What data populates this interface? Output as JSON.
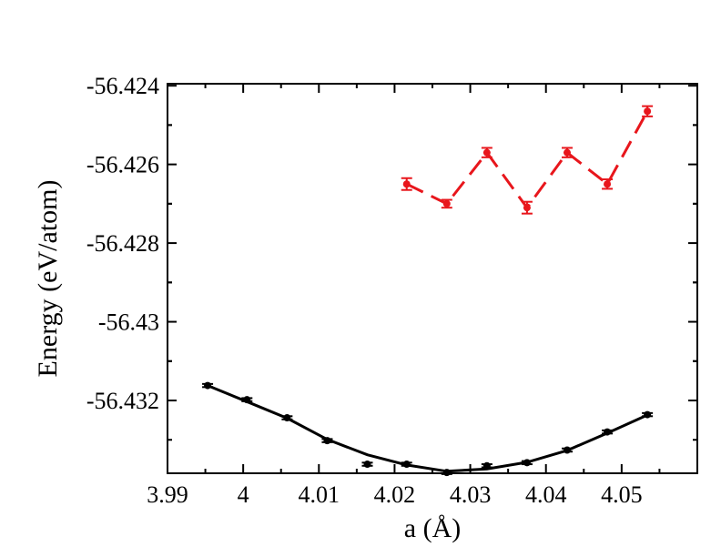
{
  "chart_data": {
    "type": "scatter",
    "xlabel": "a (Å)",
    "ylabel": "Energy (eV/atom)",
    "xlim": [
      3.99,
      4.06
    ],
    "ylim": [
      -56.43385,
      -56.42395
    ],
    "x_ticks": [
      3.99,
      4.0,
      4.01,
      4.02,
      4.03,
      4.04,
      4.05
    ],
    "x_tick_labels": [
      "3.99",
      "4",
      "4.01",
      "4.02",
      "4.03",
      "4.04",
      "4.05"
    ],
    "y_ticks": [
      -56.424,
      -56.426,
      -56.428,
      -56.43,
      -56.432
    ],
    "y_tick_labels": [
      "-56.424",
      "-56.426",
      "-56.428",
      "-56.43",
      "-56.432"
    ],
    "grid": false,
    "series": [
      {
        "color": "#000000",
        "line_style": "solid",
        "points": [
          {
            "x": 3.9953,
            "y": -56.43162,
            "err": 4e-05
          },
          {
            "x": 4.0005,
            "y": -56.43198,
            "err": 4e-05
          },
          {
            "x": 4.0058,
            "y": -56.43244,
            "err": 4e-05
          },
          {
            "x": 4.0111,
            "y": -56.43302,
            "err": 4e-05
          },
          {
            "x": 4.0164,
            "y": -56.43362,
            "err": 4e-05
          },
          {
            "x": 4.0216,
            "y": -56.43362,
            "err": 4e-05
          },
          {
            "x": 4.0269,
            "y": -56.43383,
            "err": 4e-05
          },
          {
            "x": 4.0322,
            "y": -56.43366,
            "err": 4e-05
          },
          {
            "x": 4.0375,
            "y": -56.43358,
            "err": 4e-05
          },
          {
            "x": 4.0428,
            "y": -56.43326,
            "err": 4e-05
          },
          {
            "x": 4.0481,
            "y": -56.4328,
            "err": 4e-05
          },
          {
            "x": 4.0534,
            "y": -56.43236,
            "err": 4e-05
          }
        ],
        "fit": [
          {
            "x": 3.9953,
            "y": -56.43162
          },
          {
            "x": 4.0005,
            "y": -56.43203
          },
          {
            "x": 4.0058,
            "y": -56.43245
          },
          {
            "x": 4.0111,
            "y": -56.43299
          },
          {
            "x": 4.0164,
            "y": -56.43338
          },
          {
            "x": 4.0216,
            "y": -56.43364
          },
          {
            "x": 4.0269,
            "y": -56.4338
          },
          {
            "x": 4.0322,
            "y": -56.43374
          },
          {
            "x": 4.0375,
            "y": -56.43357
          },
          {
            "x": 4.0428,
            "y": -56.43327
          },
          {
            "x": 4.0481,
            "y": -56.43283
          },
          {
            "x": 4.0534,
            "y": -56.43237
          }
        ]
      },
      {
        "color": "#e8161c",
        "line_style": "dashed",
        "points": [
          {
            "x": 4.0216,
            "y": -56.4265,
            "err": 0.00015
          },
          {
            "x": 4.0269,
            "y": -56.427,
            "err": 0.0001
          },
          {
            "x": 4.0322,
            "y": -56.4257,
            "err": 0.00012
          },
          {
            "x": 4.0375,
            "y": -56.4271,
            "err": 0.00015
          },
          {
            "x": 4.0428,
            "y": -56.4257,
            "err": 0.00012
          },
          {
            "x": 4.0481,
            "y": -56.4265,
            "err": 0.00012
          },
          {
            "x": 4.0534,
            "y": -56.42465,
            "err": 0.00013
          }
        ]
      }
    ]
  }
}
